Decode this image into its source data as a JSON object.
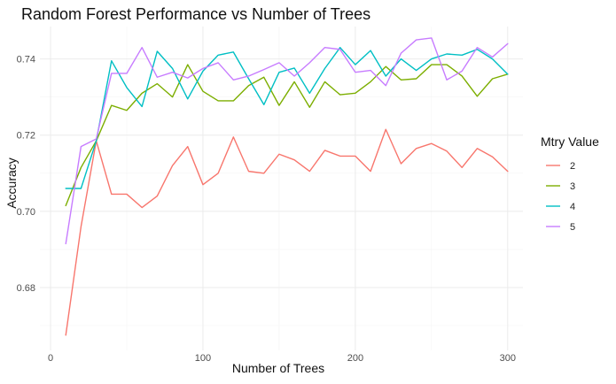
{
  "chart_data": {
    "type": "line",
    "title": "Random Forest Performance vs Number of Trees",
    "xlabel": "Number of Trees",
    "ylabel": "Accuracy",
    "xlim": [
      -7,
      310
    ],
    "ylim": [
      0.6635,
      0.7485
    ],
    "x_ticks": [
      0,
      100,
      200,
      300
    ],
    "x_tick_labels": [
      "0",
      "100",
      "200",
      "300"
    ],
    "y_ticks": [
      0.68,
      0.7,
      0.72,
      0.74
    ],
    "y_tick_labels": [
      "0.68",
      "0.70",
      "0.72",
      "0.74"
    ],
    "grid": true,
    "legend": {
      "title": "Mtry Value",
      "position": "right"
    },
    "x": [
      10,
      20,
      30,
      40,
      50,
      60,
      70,
      80,
      90,
      100,
      110,
      120,
      130,
      140,
      150,
      160,
      170,
      180,
      190,
      200,
      210,
      220,
      230,
      240,
      250,
      260,
      270,
      280,
      290,
      300
    ],
    "series": [
      {
        "name": "2",
        "color": "#F8766D",
        "values": [
          0.6675,
          0.696,
          0.7185,
          0.7045,
          0.7045,
          0.701,
          0.704,
          0.712,
          0.717,
          0.707,
          0.71,
          0.7195,
          0.7105,
          0.71,
          0.715,
          0.7135,
          0.7105,
          0.716,
          0.7145,
          0.7145,
          0.7105,
          0.7215,
          0.7125,
          0.7165,
          0.7178,
          0.7158,
          0.7115,
          0.7165,
          0.7143,
          0.7105
        ]
      },
      {
        "name": "3",
        "color": "#7CAE00",
        "values": [
          0.7015,
          0.7115,
          0.7185,
          0.7278,
          0.7265,
          0.731,
          0.7335,
          0.73,
          0.7385,
          0.7315,
          0.729,
          0.729,
          0.733,
          0.7352,
          0.7278,
          0.734,
          0.7273,
          0.734,
          0.7306,
          0.731,
          0.734,
          0.738,
          0.7345,
          0.7348,
          0.7385,
          0.7385,
          0.7355,
          0.7302,
          0.7348,
          0.736
        ]
      },
      {
        "name": "4",
        "color": "#00BFC4",
        "values": [
          0.706,
          0.706,
          0.7185,
          0.7395,
          0.7325,
          0.7275,
          0.742,
          0.7375,
          0.7295,
          0.7368,
          0.741,
          0.7418,
          0.7348,
          0.728,
          0.7365,
          0.7376,
          0.731,
          0.7375,
          0.743,
          0.7385,
          0.7422,
          0.7355,
          0.74,
          0.737,
          0.74,
          0.7413,
          0.741,
          0.7425,
          0.74,
          0.736
        ]
      },
      {
        "name": "5",
        "color": "#C77CFF",
        "values": [
          0.6915,
          0.717,
          0.719,
          0.7362,
          0.7362,
          0.743,
          0.7352,
          0.7365,
          0.735,
          0.7375,
          0.739,
          0.7345,
          0.7355,
          0.7372,
          0.739,
          0.7355,
          0.739,
          0.743,
          0.7425,
          0.7365,
          0.737,
          0.733,
          0.7415,
          0.745,
          0.7455,
          0.7345,
          0.7368,
          0.743,
          0.7405,
          0.744
        ]
      }
    ]
  }
}
